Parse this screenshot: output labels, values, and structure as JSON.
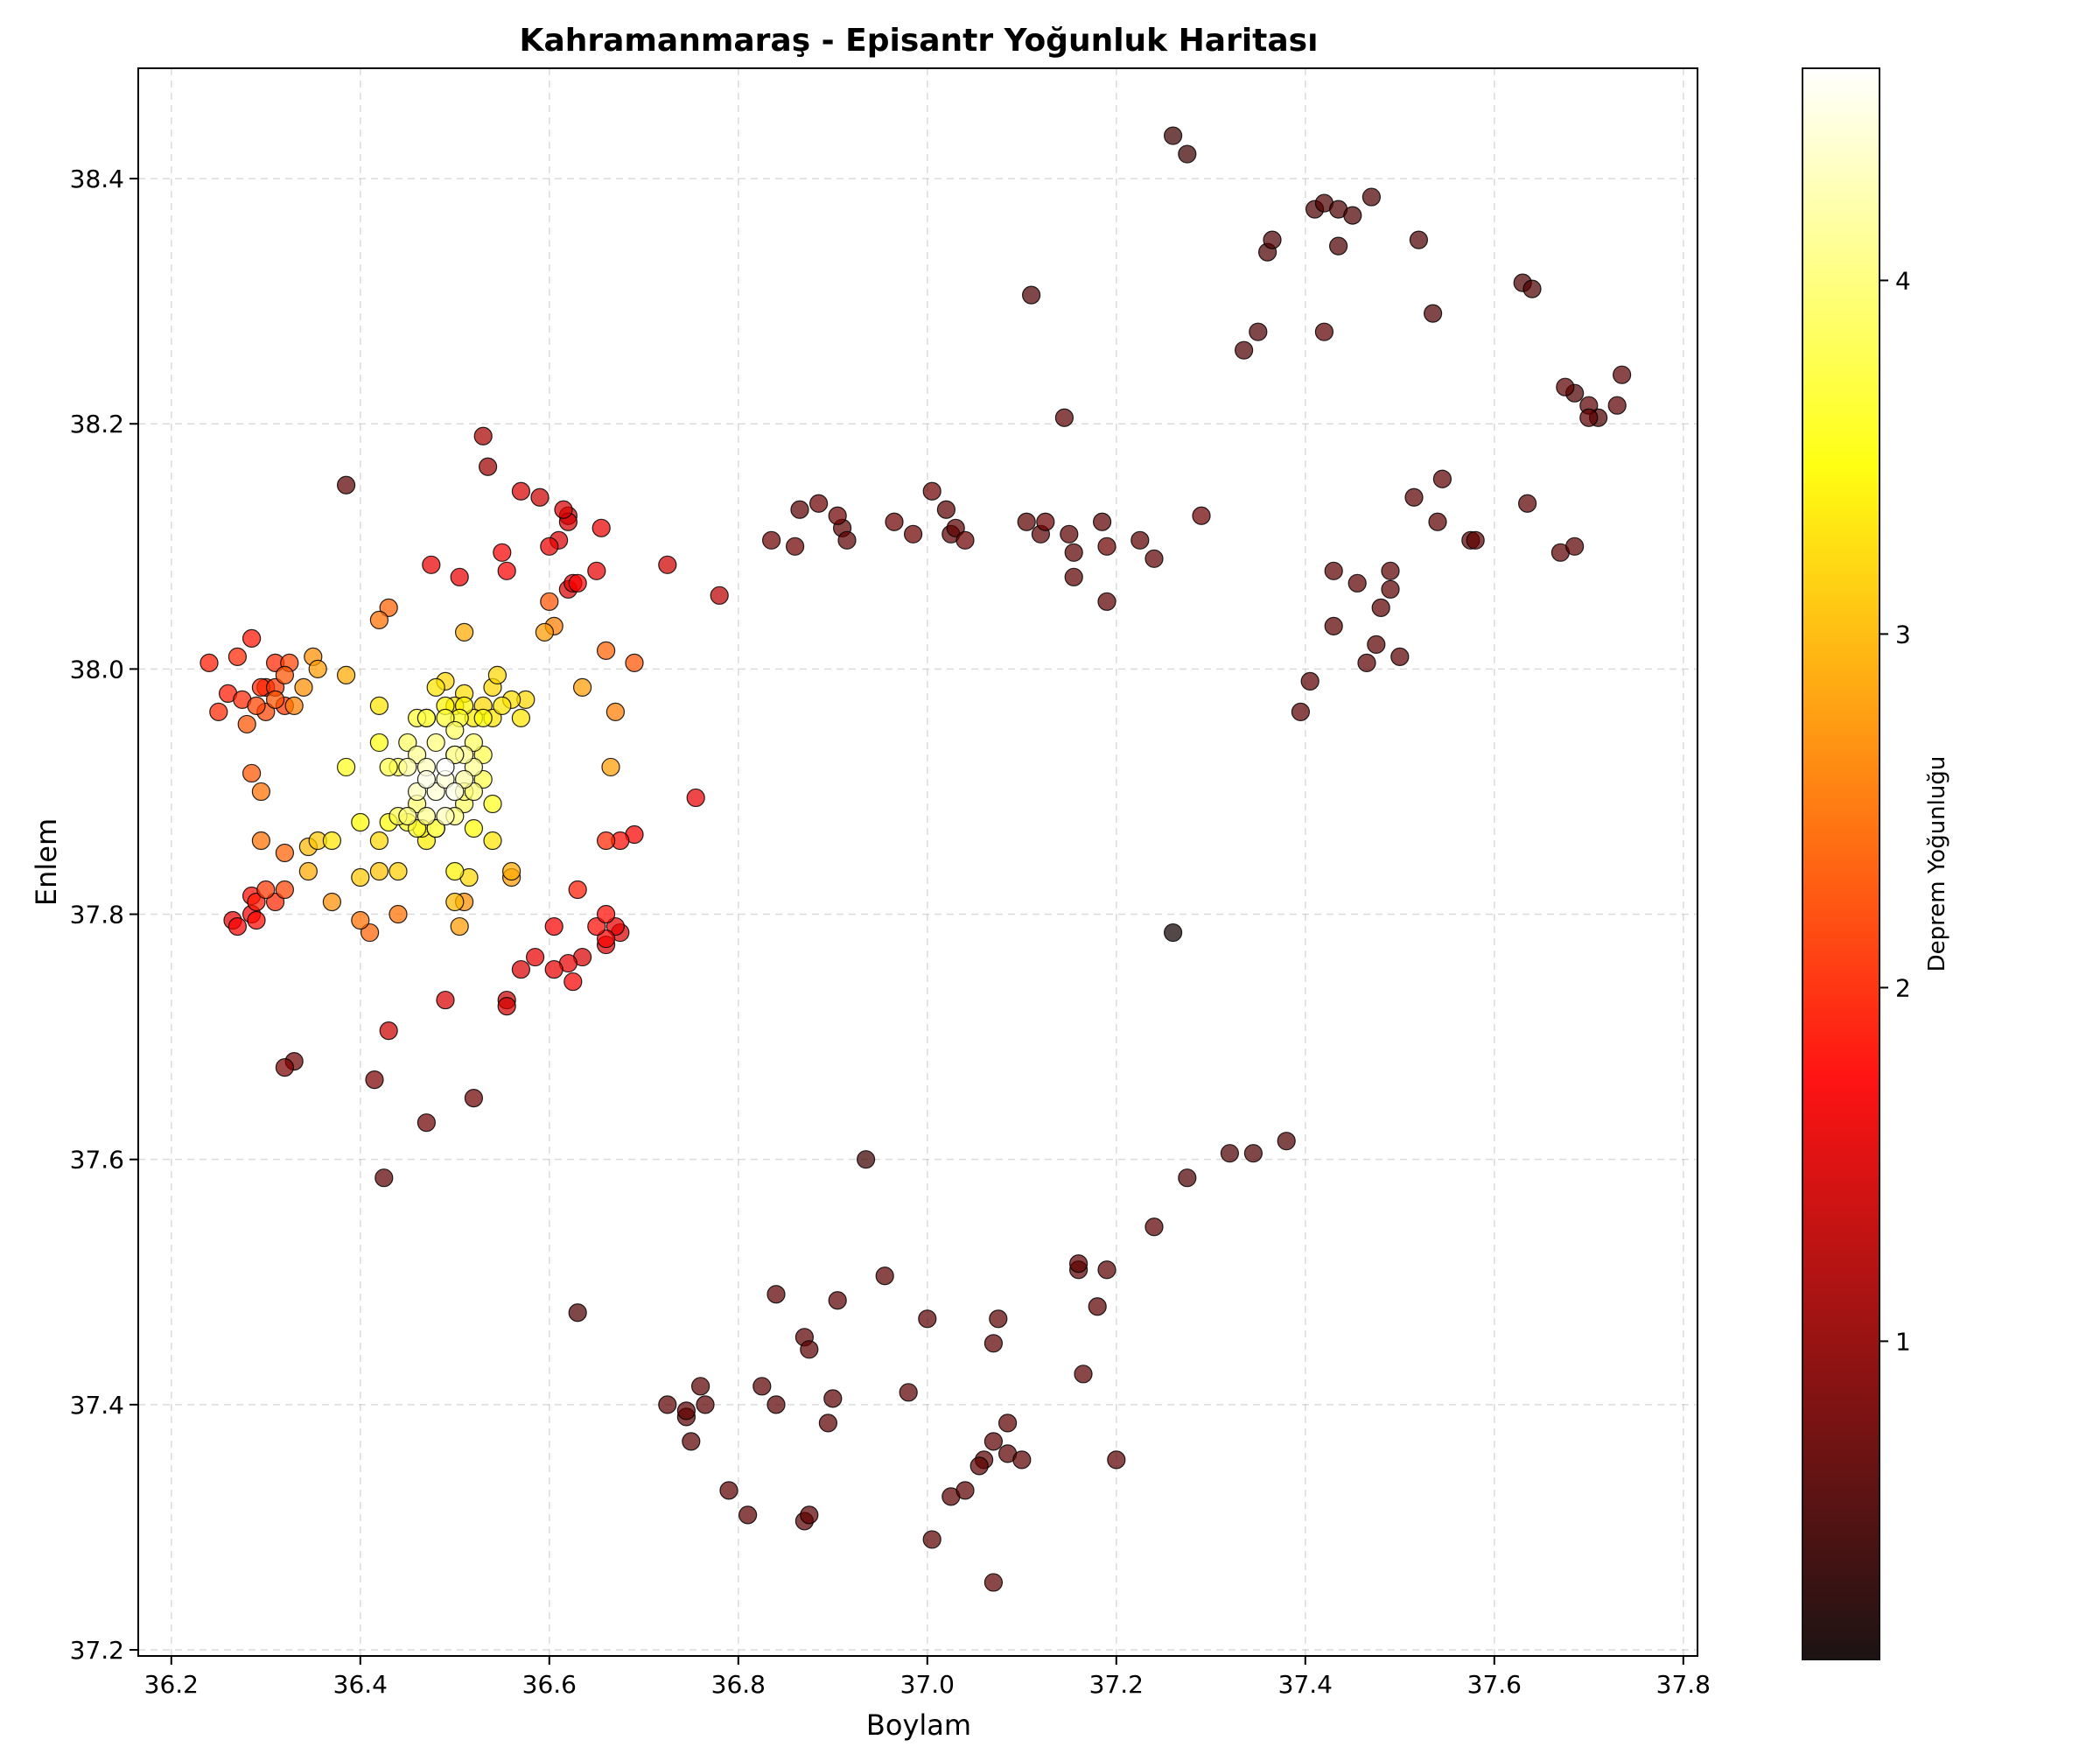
{
  "chart_data": {
    "type": "scatter",
    "title": "Kahramanmaraş - Episantr Yoğunluk Haritası",
    "xlabel": "Boylam",
    "ylabel": "Enlem",
    "xlim": [
      36.165,
      37.815
    ],
    "ylim": [
      37.195,
      38.49
    ],
    "xticks": [
      "36.2",
      "36.4",
      "36.6",
      "36.8",
      "37.0",
      "37.2",
      "37.4",
      "37.6",
      "37.8"
    ],
    "yticks": [
      "37.2",
      "37.4",
      "37.6",
      "37.8",
      "38.0",
      "38.2",
      "38.4"
    ],
    "grid": true,
    "colorbar": {
      "label": "Deprem Yoğunluğu",
      "colormap": "hot",
      "range": [
        0.1,
        4.6
      ],
      "ticks": [
        "1",
        "2",
        "3",
        "4"
      ],
      "colors": [
        "#000000",
        "#b20000",
        "#ff0000",
        "#ff8000",
        "#ffff00",
        "#ffffff"
      ]
    },
    "points": [
      [
        36.49,
        37.92,
        4.6
      ],
      [
        36.47,
        37.91,
        4.5
      ],
      [
        36.5,
        37.9,
        4.5
      ],
      [
        36.48,
        37.9,
        4.4
      ],
      [
        36.46,
        37.9,
        4.3
      ],
      [
        36.49,
        37.88,
        4.3
      ],
      [
        36.51,
        37.91,
        4.2
      ],
      [
        36.5,
        37.93,
        4.2
      ],
      [
        36.45,
        37.92,
        4.2
      ],
      [
        36.47,
        37.88,
        4.1
      ],
      [
        36.52,
        37.92,
        4.1
      ],
      [
        36.46,
        37.93,
        4.1
      ],
      [
        36.48,
        37.94,
        4.0
      ],
      [
        36.5,
        37.88,
        4.0
      ],
      [
        36.51,
        37.9,
        4.0
      ],
      [
        36.45,
        37.88,
        4.0
      ],
      [
        36.46,
        37.89,
        3.95
      ],
      [
        36.48,
        37.87,
        3.95
      ],
      [
        36.51,
        37.89,
        3.9
      ],
      [
        36.45,
        37.94,
        3.9
      ],
      [
        36.5,
        37.95,
        3.9
      ],
      [
        36.52,
        37.94,
        3.9
      ],
      [
        36.47,
        37.96,
        3.85
      ],
      [
        36.44,
        37.92,
        3.8
      ],
      [
        36.43,
        37.92,
        3.8
      ],
      [
        36.44,
        37.88,
        3.8
      ],
      [
        36.53,
        37.93,
        3.8
      ],
      [
        36.49,
        37.96,
        3.7
      ],
      [
        36.48,
        37.87,
        3.7
      ],
      [
        36.5,
        37.93,
        3.9
      ],
      [
        36.49,
        37.91,
        4.4
      ],
      [
        36.47,
        37.92,
        4.3
      ],
      [
        36.51,
        37.93,
        4.1
      ],
      [
        36.52,
        37.9,
        4.0
      ],
      [
        36.53,
        37.91,
        3.8
      ],
      [
        36.46,
        37.87,
        3.7
      ],
      [
        36.45,
        37.875,
        3.6
      ],
      [
        36.43,
        37.875,
        3.5
      ],
      [
        36.42,
        37.94,
        3.55
      ],
      [
        36.385,
        37.92,
        3.6
      ],
      [
        36.49,
        37.99,
        3.2
      ],
      [
        36.5,
        37.97,
        3.3
      ],
      [
        36.51,
        37.97,
        3.4
      ],
      [
        36.52,
        37.96,
        3.35
      ],
      [
        36.53,
        37.97,
        3.2
      ],
      [
        36.54,
        37.96,
        3.3
      ],
      [
        36.54,
        37.985,
        3.2
      ],
      [
        36.55,
        37.97,
        3.3
      ],
      [
        36.56,
        37.975,
        3.25
      ],
      [
        36.57,
        37.96,
        3.3
      ],
      [
        36.575,
        37.975,
        3.2
      ],
      [
        36.48,
        37.985,
        3.3
      ],
      [
        36.51,
        37.98,
        3.25
      ],
      [
        36.53,
        37.96,
        3.5
      ],
      [
        36.545,
        37.995,
        3.2
      ],
      [
        36.47,
        37.96,
        3.6
      ],
      [
        36.46,
        37.96,
        3.7
      ],
      [
        36.49,
        37.97,
        3.4
      ],
      [
        36.505,
        37.96,
        3.6
      ],
      [
        36.54,
        37.89,
        3.6
      ],
      [
        36.52,
        37.87,
        3.5
      ],
      [
        36.54,
        37.86,
        3.3
      ],
      [
        36.515,
        37.83,
        3.2
      ],
      [
        36.5,
        37.835,
        3.4
      ],
      [
        36.47,
        37.86,
        3.35
      ],
      [
        36.48,
        37.87,
        3.5
      ],
      [
        36.465,
        37.87,
        3.5
      ],
      [
        36.5,
        37.81,
        3.0
      ],
      [
        36.51,
        37.81,
        2.7
      ],
      [
        36.505,
        37.79,
        2.8
      ],
      [
        36.56,
        37.835,
        2.9
      ],
      [
        36.44,
        37.835,
        3.15
      ],
      [
        36.42,
        37.835,
        3.05
      ],
      [
        36.4,
        37.83,
        3.1
      ],
      [
        36.42,
        37.86,
        3.2
      ],
      [
        36.4,
        37.875,
        3.45
      ],
      [
        36.37,
        37.86,
        3.3
      ],
      [
        36.355,
        37.86,
        3.1
      ],
      [
        36.345,
        37.855,
        3.0
      ],
      [
        36.345,
        37.835,
        2.9
      ],
      [
        36.42,
        37.97,
        3.3
      ],
      [
        36.385,
        37.995,
        2.9
      ],
      [
        36.35,
        38.01,
        2.7
      ],
      [
        36.355,
        38.0,
        2.8
      ],
      [
        36.34,
        37.985,
        2.7
      ],
      [
        36.33,
        37.97,
        2.6
      ],
      [
        36.51,
        38.03,
        2.9
      ],
      [
        36.595,
        38.03,
        2.8
      ],
      [
        36.605,
        38.035,
        2.6
      ],
      [
        36.635,
        37.985,
        2.8
      ],
      [
        36.665,
        37.92,
        2.8
      ],
      [
        36.67,
        37.965,
        2.6
      ],
      [
        36.56,
        37.83,
        2.8
      ],
      [
        36.37,
        37.81,
        2.7
      ],
      [
        36.4,
        37.795,
        2.5
      ],
      [
        36.41,
        37.785,
        2.4
      ],
      [
        36.44,
        37.8,
        2.5
      ],
      [
        36.43,
        38.05,
        2.4
      ],
      [
        36.42,
        38.04,
        2.5
      ],
      [
        36.66,
        38.015,
        2.4
      ],
      [
        36.69,
        38.005,
        2.3
      ],
      [
        36.6,
        38.055,
        2.3
      ],
      [
        36.32,
        37.995,
        2.3
      ],
      [
        36.325,
        38.005,
        2.2
      ],
      [
        36.31,
        37.985,
        2.1
      ],
      [
        36.3,
        37.965,
        2.2
      ],
      [
        36.31,
        37.975,
        2.3
      ],
      [
        36.32,
        37.97,
        2.1
      ],
      [
        36.3,
        37.985,
        2.0
      ],
      [
        36.29,
        37.97,
        2.2
      ],
      [
        36.28,
        37.955,
        2.3
      ],
      [
        36.275,
        37.975,
        2.0
      ],
      [
        36.26,
        37.98,
        1.9
      ],
      [
        36.25,
        37.965,
        2.0
      ],
      [
        36.24,
        38.005,
        1.9
      ],
      [
        36.27,
        38.01,
        2.0
      ],
      [
        36.285,
        38.025,
        1.85
      ],
      [
        36.31,
        38.005,
        2.0
      ],
      [
        36.295,
        37.985,
        2.0
      ],
      [
        36.285,
        37.915,
        2.3
      ],
      [
        36.295,
        37.9,
        2.5
      ],
      [
        36.295,
        37.86,
        2.5
      ],
      [
        36.32,
        37.85,
        2.4
      ],
      [
        36.32,
        37.82,
        2.2
      ],
      [
        36.3,
        37.82,
        2.1
      ],
      [
        36.31,
        37.81,
        2.0
      ],
      [
        36.29,
        37.81,
        1.9
      ],
      [
        36.285,
        37.815,
        1.8
      ],
      [
        36.29,
        37.795,
        1.8
      ],
      [
        36.285,
        37.8,
        1.7
      ],
      [
        36.27,
        37.79,
        1.7
      ],
      [
        36.265,
        37.795,
        1.6
      ],
      [
        36.66,
        37.86,
        2.0
      ],
      [
        36.675,
        37.86,
        1.8
      ],
      [
        36.69,
        37.865,
        1.7
      ],
      [
        36.63,
        37.82,
        1.9
      ],
      [
        36.65,
        37.79,
        1.8
      ],
      [
        36.66,
        37.78,
        1.7
      ],
      [
        36.66,
        37.8,
        1.8
      ],
      [
        36.67,
        37.79,
        1.6
      ],
      [
        36.675,
        37.785,
        1.5
      ],
      [
        36.66,
        37.775,
        1.5
      ],
      [
        36.635,
        37.765,
        1.5
      ],
      [
        36.62,
        37.76,
        1.6
      ],
      [
        36.625,
        37.745,
        1.7
      ],
      [
        36.605,
        37.755,
        1.6
      ],
      [
        36.605,
        37.79,
        1.7
      ],
      [
        36.585,
        37.765,
        1.6
      ],
      [
        36.57,
        37.755,
        1.5
      ],
      [
        36.555,
        37.725,
        1.45
      ],
      [
        36.555,
        37.73,
        1.4
      ],
      [
        36.49,
        37.73,
        1.5
      ],
      [
        36.43,
        37.705,
        1.4
      ],
      [
        36.755,
        37.895,
        1.6
      ],
      [
        36.55,
        38.095,
        1.7
      ],
      [
        36.555,
        38.08,
        1.7
      ],
      [
        36.505,
        38.075,
        1.6
      ],
      [
        36.475,
        38.085,
        1.6
      ],
      [
        36.6,
        38.1,
        1.6
      ],
      [
        36.61,
        38.105,
        1.5
      ],
      [
        36.62,
        38.125,
        1.4
      ],
      [
        36.615,
        38.13,
        1.5
      ],
      [
        36.62,
        38.12,
        1.45
      ],
      [
        36.625,
        38.07,
        1.6
      ],
      [
        36.63,
        38.07,
        1.7
      ],
      [
        36.62,
        38.065,
        1.5
      ],
      [
        36.65,
        38.08,
        1.6
      ],
      [
        36.655,
        38.115,
        1.6
      ],
      [
        36.57,
        38.145,
        1.5
      ],
      [
        36.59,
        38.14,
        1.4
      ],
      [
        36.725,
        38.085,
        1.4
      ],
      [
        36.78,
        38.06,
        1.3
      ],
      [
        36.53,
        38.19,
        1.2
      ],
      [
        36.535,
        38.165,
        1.1
      ],
      [
        36.385,
        38.15,
        0.7
      ],
      [
        36.415,
        37.665,
        0.9
      ],
      [
        36.425,
        37.585,
        0.7
      ],
      [
        36.47,
        37.63,
        0.8
      ],
      [
        36.52,
        37.65,
        0.8
      ],
      [
        36.32,
        37.675,
        0.9
      ],
      [
        36.33,
        37.68,
        0.8
      ],
      [
        36.63,
        37.475,
        0.6
      ],
      [
        36.935,
        37.6,
        0.5
      ],
      [
        37.26,
        37.785,
        0.2
      ],
      [
        36.835,
        38.105,
        0.8
      ],
      [
        36.86,
        38.1,
        0.8
      ],
      [
        36.865,
        38.13,
        0.7
      ],
      [
        36.885,
        38.135,
        0.8
      ],
      [
        36.905,
        38.125,
        0.8
      ],
      [
        36.91,
        38.115,
        0.7
      ],
      [
        36.915,
        38.105,
        0.7
      ],
      [
        36.965,
        38.12,
        0.8
      ],
      [
        36.985,
        38.11,
        0.8
      ],
      [
        37.005,
        38.145,
        0.8
      ],
      [
        37.02,
        38.13,
        0.7
      ],
      [
        37.025,
        38.11,
        0.7
      ],
      [
        37.03,
        38.115,
        0.7
      ],
      [
        37.04,
        38.105,
        0.8
      ],
      [
        37.105,
        38.12,
        0.7
      ],
      [
        37.125,
        38.12,
        0.8
      ],
      [
        37.12,
        38.11,
        0.7
      ],
      [
        37.15,
        38.11,
        0.7
      ],
      [
        37.155,
        38.095,
        0.7
      ],
      [
        37.155,
        38.075,
        0.7
      ],
      [
        37.145,
        38.205,
        0.7
      ],
      [
        37.11,
        38.305,
        0.6
      ],
      [
        37.185,
        38.12,
        0.7
      ],
      [
        37.19,
        38.1,
        0.8
      ],
      [
        37.19,
        38.055,
        0.7
      ],
      [
        37.225,
        38.105,
        0.7
      ],
      [
        37.24,
        38.09,
        0.7
      ],
      [
        37.29,
        38.125,
        0.8
      ],
      [
        37.26,
        38.435,
        0.5
      ],
      [
        37.275,
        38.42,
        0.5
      ],
      [
        37.335,
        38.26,
        0.6
      ],
      [
        37.35,
        38.275,
        0.6
      ],
      [
        37.36,
        38.34,
        0.6
      ],
      [
        37.365,
        38.35,
        0.6
      ],
      [
        37.41,
        38.375,
        0.6
      ],
      [
        37.42,
        38.38,
        0.6
      ],
      [
        37.435,
        38.375,
        0.6
      ],
      [
        37.45,
        38.37,
        0.6
      ],
      [
        37.47,
        38.385,
        0.6
      ],
      [
        37.435,
        38.345,
        0.6
      ],
      [
        37.52,
        38.35,
        0.6
      ],
      [
        37.42,
        38.275,
        0.7
      ],
      [
        37.535,
        38.29,
        0.6
      ],
      [
        37.63,
        38.315,
        0.6
      ],
      [
        37.64,
        38.31,
        0.6
      ],
      [
        37.675,
        38.23,
        0.7
      ],
      [
        37.685,
        38.225,
        0.6
      ],
      [
        37.7,
        38.215,
        0.7
      ],
      [
        37.7,
        38.205,
        0.7
      ],
      [
        37.71,
        38.205,
        0.6
      ],
      [
        37.73,
        38.215,
        0.7
      ],
      [
        37.735,
        38.24,
        0.7
      ],
      [
        37.515,
        38.14,
        0.7
      ],
      [
        37.545,
        38.155,
        0.7
      ],
      [
        37.54,
        38.12,
        0.7
      ],
      [
        37.575,
        38.105,
        0.7
      ],
      [
        37.58,
        38.105,
        0.7
      ],
      [
        37.635,
        38.135,
        0.7
      ],
      [
        37.67,
        38.095,
        0.7
      ],
      [
        37.685,
        38.1,
        0.7
      ],
      [
        37.43,
        38.08,
        0.7
      ],
      [
        37.455,
        38.07,
        0.7
      ],
      [
        37.49,
        38.08,
        0.7
      ],
      [
        37.49,
        38.065,
        0.7
      ],
      [
        37.48,
        38.05,
        0.7
      ],
      [
        37.43,
        38.035,
        0.7
      ],
      [
        37.475,
        38.02,
        0.7
      ],
      [
        37.465,
        38.005,
        0.7
      ],
      [
        37.5,
        38.01,
        0.7
      ],
      [
        37.405,
        37.99,
        0.7
      ],
      [
        37.395,
        37.965,
        0.7
      ],
      [
        37.38,
        37.615,
        0.6
      ],
      [
        37.345,
        37.605,
        0.6
      ],
      [
        37.32,
        37.605,
        0.6
      ],
      [
        37.275,
        37.585,
        0.6
      ],
      [
        37.24,
        37.545,
        0.7
      ],
      [
        37.19,
        37.51,
        0.7
      ],
      [
        37.16,
        37.51,
        0.7
      ],
      [
        37.16,
        37.515,
        0.7
      ],
      [
        37.18,
        37.48,
        0.7
      ],
      [
        37.165,
        37.425,
        0.7
      ],
      [
        37.2,
        37.355,
        0.7
      ],
      [
        36.84,
        37.49,
        0.7
      ],
      [
        36.87,
        37.455,
        0.7
      ],
      [
        36.875,
        37.445,
        0.7
      ],
      [
        36.905,
        37.485,
        0.7
      ],
      [
        36.955,
        37.505,
        0.7
      ],
      [
        37.0,
        37.47,
        0.7
      ],
      [
        37.075,
        37.47,
        0.7
      ],
      [
        37.07,
        37.45,
        0.7
      ],
      [
        36.725,
        37.4,
        0.7
      ],
      [
        36.745,
        37.39,
        0.7
      ],
      [
        36.745,
        37.395,
        0.7
      ],
      [
        36.75,
        37.37,
        0.7
      ],
      [
        36.76,
        37.415,
        0.7
      ],
      [
        36.765,
        37.4,
        0.7
      ],
      [
        36.825,
        37.415,
        0.7
      ],
      [
        36.84,
        37.4,
        0.7
      ],
      [
        36.9,
        37.405,
        0.7
      ],
      [
        36.895,
        37.385,
        0.7
      ],
      [
        36.98,
        37.41,
        0.7
      ],
      [
        37.085,
        37.385,
        0.7
      ],
      [
        37.07,
        37.37,
        0.7
      ],
      [
        37.085,
        37.36,
        0.7
      ],
      [
        37.1,
        37.355,
        0.7
      ],
      [
        37.06,
        37.355,
        0.7
      ],
      [
        37.055,
        37.35,
        0.7
      ],
      [
        36.79,
        37.33,
        0.7
      ],
      [
        36.81,
        37.31,
        0.7
      ],
      [
        36.87,
        37.305,
        0.7
      ],
      [
        36.875,
        37.31,
        0.7
      ],
      [
        37.025,
        37.325,
        0.7
      ],
      [
        37.04,
        37.33,
        0.7
      ],
      [
        37.005,
        37.29,
        0.7
      ],
      [
        37.07,
        37.255,
        0.7
      ]
    ]
  }
}
